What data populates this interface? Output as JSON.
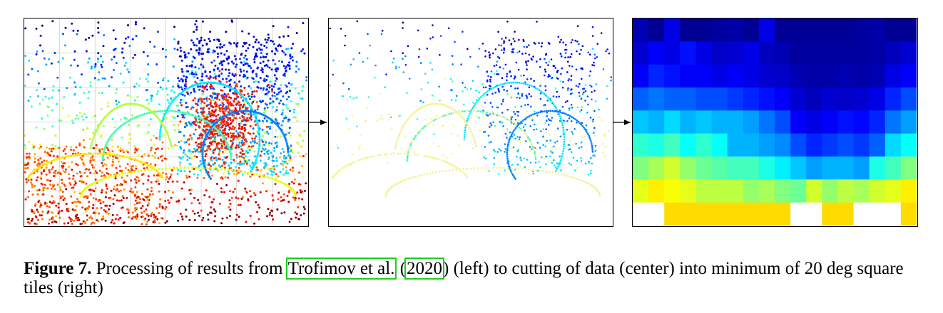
{
  "figure": {
    "label": "Figure 7.",
    "caption_part1": " Processing of results from ",
    "citation_author": "Trofimov et al.",
    "caption_part2": " (",
    "citation_year": "2020",
    "caption_part3": ") (left) to cutting of data (center) into minimum of 20 deg square tiles (right)"
  },
  "panels": {
    "left": "raw-scatter-with-grid",
    "center": "cut-scatter",
    "right": "tiled-heatmap"
  },
  "colormap": [
    "#00008f",
    "#0000ff",
    "#00ffff",
    "#80ff80",
    "#ffff00",
    "#ff0000",
    "#800000"
  ],
  "tile_grid": {
    "rows": [
      [
        0.05,
        0.02,
        0.1,
        0.02,
        0.02,
        0.03,
        0.04,
        0.02,
        0.1,
        0.02,
        0.02,
        0.02,
        0.02,
        0.02,
        0.03,
        0.04,
        0.02,
        0.02
      ],
      [
        0.08,
        0.12,
        0.1,
        0.14,
        0.1,
        0.07,
        0.08,
        0.1,
        0.06,
        0.05,
        0.03,
        0.03,
        0.03,
        0.03,
        0.03,
        0.04,
        0.06,
        0.08
      ],
      [
        0.12,
        0.16,
        0.14,
        0.12,
        0.12,
        0.1,
        0.12,
        0.1,
        0.08,
        0.07,
        0.05,
        0.04,
        0.04,
        0.05,
        0.04,
        0.05,
        0.1,
        0.12
      ],
      [
        0.22,
        0.24,
        0.22,
        0.22,
        0.2,
        0.2,
        0.18,
        0.16,
        0.14,
        0.12,
        0.08,
        0.06,
        0.08,
        0.07,
        0.08,
        0.1,
        0.16,
        0.2
      ],
      [
        0.32,
        0.3,
        0.34,
        0.3,
        0.32,
        0.3,
        0.3,
        0.28,
        0.24,
        0.2,
        0.12,
        0.1,
        0.12,
        0.14,
        0.13,
        0.16,
        0.24,
        0.28
      ],
      [
        0.42,
        0.4,
        0.44,
        0.38,
        0.42,
        0.38,
        0.3,
        0.3,
        0.28,
        0.26,
        0.2,
        0.16,
        0.18,
        0.2,
        0.18,
        0.22,
        0.34,
        0.38
      ],
      [
        0.5,
        0.54,
        0.58,
        0.52,
        0.48,
        0.46,
        0.44,
        0.44,
        0.4,
        0.36,
        0.32,
        0.28,
        0.3,
        0.3,
        0.28,
        0.4,
        0.44,
        0.5
      ],
      [
        0.6,
        0.64,
        0.62,
        0.6,
        0.56,
        0.56,
        0.56,
        0.52,
        0.54,
        0.5,
        0.48,
        0.58,
        0.52,
        0.56,
        0.54,
        0.58,
        0.6,
        0.64
      ],
      [
        null,
        null,
        0.66,
        0.66,
        0.66,
        0.66,
        0.66,
        0.66,
        0.66,
        0.66,
        null,
        null,
        0.66,
        0.66,
        null,
        null,
        null,
        0.66
      ]
    ]
  }
}
